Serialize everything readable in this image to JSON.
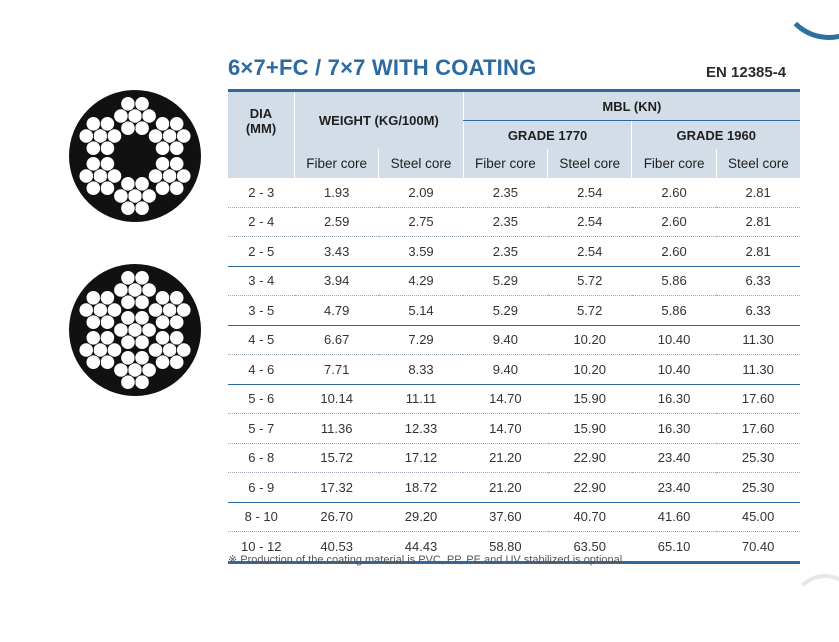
{
  "title": "6×7+FC / 7×7 WITH COATING",
  "standard": "EN 12385-4",
  "table": {
    "dia_header": "DIA\n(MM)",
    "weight_header": "WEIGHT (KG/100M)",
    "mbl_header": "MBL (KN)",
    "grade_1770": "GRADE 1770",
    "grade_1960": "GRADE 1960",
    "sub_headers": [
      "Fiber core",
      "Steel core",
      "Fiber core",
      "Steel core",
      "Fiber core",
      "Steel core"
    ],
    "rows": [
      [
        "2 - 3",
        "1.93",
        "2.09",
        "2.35",
        "2.54",
        "2.60",
        "2.81"
      ],
      [
        "2 - 4",
        "2.59",
        "2.75",
        "2.35",
        "2.54",
        "2.60",
        "2.81"
      ],
      [
        "2 - 5",
        "3.43",
        "3.59",
        "2.35",
        "2.54",
        "2.60",
        "2.81"
      ],
      [
        "3 - 4",
        "3.94",
        "4.29",
        "5.29",
        "5.72",
        "5.86",
        "6.33"
      ],
      [
        "3 - 5",
        "4.79",
        "5.14",
        "5.29",
        "5.72",
        "5.86",
        "6.33"
      ],
      [
        "4 - 5",
        "6.67",
        "7.29",
        "9.40",
        "10.20",
        "10.40",
        "11.30"
      ],
      [
        "4 - 6",
        "7.71",
        "8.33",
        "9.40",
        "10.20",
        "10.40",
        "11.30"
      ],
      [
        "5 - 6",
        "10.14",
        "11.11",
        "14.70",
        "15.90",
        "16.30",
        "17.60"
      ],
      [
        "5 - 7",
        "11.36",
        "12.33",
        "14.70",
        "15.90",
        "16.30",
        "17.60"
      ],
      [
        "6 - 8",
        "15.72",
        "17.12",
        "21.20",
        "22.90",
        "23.40",
        "25.30"
      ],
      [
        "6 - 9",
        "17.32",
        "18.72",
        "21.20",
        "22.90",
        "23.40",
        "25.30"
      ],
      [
        "8 - 10",
        "26.70",
        "29.20",
        "37.60",
        "40.70",
        "41.60",
        "45.00"
      ],
      [
        "10 - 12",
        "40.53",
        "44.43",
        "58.80",
        "63.50",
        "65.10",
        "70.40"
      ]
    ]
  },
  "footnote": "※ Production of the coating material is PVC, PP, PE and UV stabilized is optional.",
  "images": [
    "rope-6x7-fc-cross-section",
    "rope-7x7-cross-section"
  ],
  "colors": {
    "accent": "#2d6aa0",
    "header_bg": "#d3dde7",
    "rope_fill": "#111111"
  }
}
